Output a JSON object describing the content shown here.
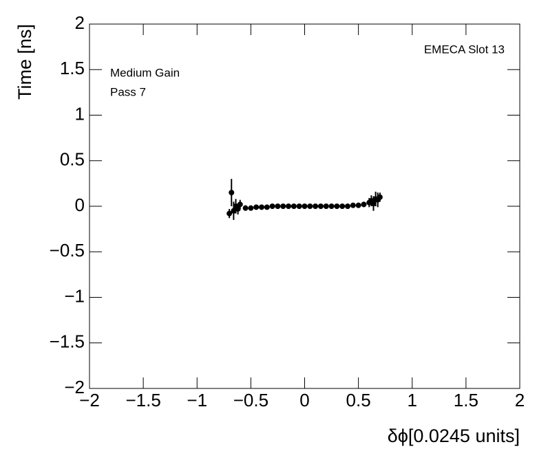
{
  "chart_data": {
    "type": "scatter",
    "title": "EMECA Slot 13",
    "annotations": [
      "Medium Gain",
      "Pass 7"
    ],
    "x_label": "δϕ[0.0245 units]",
    "y_label": "Time [ns]",
    "x": [
      -0.7,
      -0.68,
      -0.66,
      -0.64,
      -0.62,
      -0.6,
      -0.55,
      -0.5,
      -0.45,
      -0.4,
      -0.35,
      -0.3,
      -0.25,
      -0.2,
      -0.15,
      -0.1,
      -0.05,
      0,
      0.05,
      0.1,
      0.15,
      0.2,
      0.25,
      0.3,
      0.35,
      0.4,
      0.45,
      0.5,
      0.55,
      0.6,
      0.62,
      0.64,
      0.66,
      0.68,
      0.7
    ],
    "series": [
      {
        "color": "#000000",
        "values": [
          -0.08,
          0.15,
          -0.05,
          0.0,
          -0.03,
          0.02,
          -0.02,
          -0.02,
          -0.01,
          -0.01,
          -0.01,
          0,
          0,
          0,
          0,
          0,
          0,
          0,
          0,
          0,
          0,
          0,
          0,
          0,
          0,
          0,
          0.01,
          0.01,
          0.02,
          0.04,
          0.06,
          0.03,
          0.08,
          0.07,
          0.1
        ],
        "errors": [
          0.05,
          0.15,
          0.1,
          0.08,
          0.06,
          0.05,
          0.03,
          0.02,
          0.02,
          0.02,
          0.02,
          0.02,
          0.02,
          0.02,
          0.02,
          0.02,
          0.02,
          0.02,
          0.02,
          0.02,
          0.02,
          0.02,
          0.02,
          0.02,
          0.02,
          0.02,
          0.02,
          0.02,
          0.03,
          0.05,
          0.06,
          0.08,
          0.08,
          0.08,
          0.05
        ]
      }
    ],
    "xlim": [
      -2,
      2
    ],
    "ylim": [
      -2,
      2
    ],
    "xticks": [
      {
        "value": -2,
        "label": "−2"
      },
      {
        "value": -1.5,
        "label": "−1.5"
      },
      {
        "value": -1,
        "label": "−1"
      },
      {
        "value": -0.5,
        "label": "−0.5"
      },
      0,
      0.5,
      1,
      1.5,
      2
    ],
    "yticks": [
      {
        "value": -2,
        "label": "−2"
      },
      {
        "value": -1.5,
        "label": "−1.5"
      },
      {
        "value": -1,
        "label": "−1"
      },
      {
        "value": -0.5,
        "label": "−0.5"
      },
      0,
      0.5,
      1,
      1.5,
      2
    ]
  }
}
